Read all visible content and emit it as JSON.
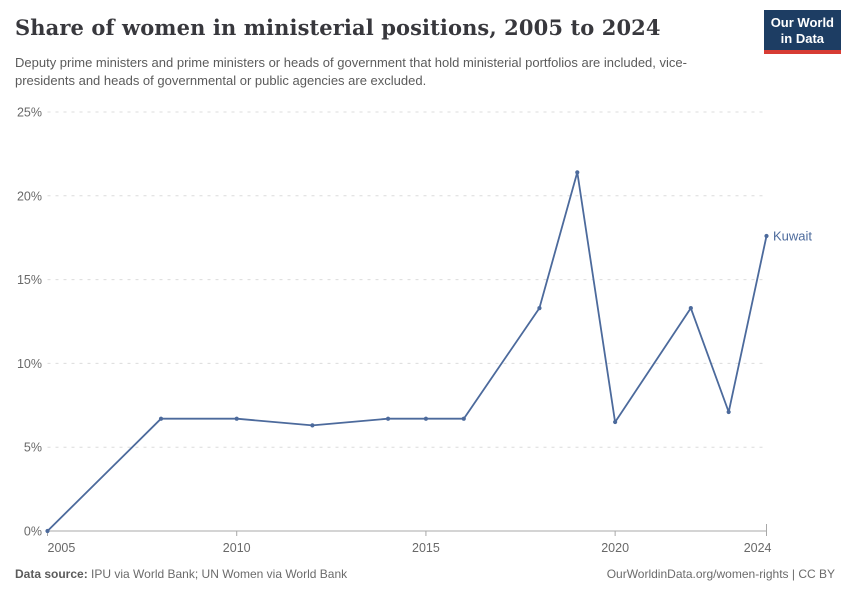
{
  "header": {
    "title": "Share of women in ministerial positions, 2005 to 2024",
    "subtitle": "Deputy prime ministers and prime ministers or heads of government that hold ministerial portfolios are included, vice-presidents and heads of governmental or public agencies are excluded."
  },
  "logo": {
    "line1": "Our World",
    "line2": "in Data",
    "bg_color": "#1d3d63",
    "accent_color": "#d73c34"
  },
  "chart_data": {
    "type": "line",
    "title": "Share of women in ministerial positions, 2005 to 2024",
    "xlabel": "",
    "ylabel": "",
    "xlim": [
      2005,
      2024
    ],
    "ylim": [
      0,
      25
    ],
    "grid": true,
    "x_ticks": [
      2005,
      2010,
      2015,
      2020,
      2024
    ],
    "x_tick_labels": [
      "2005",
      "2010",
      "2015",
      "2020",
      "2024"
    ],
    "y_ticks": [
      0,
      5,
      10,
      15,
      20,
      25
    ],
    "y_tick_labels": [
      "0%",
      "5%",
      "10%",
      "15%",
      "20%",
      "25%"
    ],
    "series": [
      {
        "name": "Kuwait",
        "color": "#4c6a9c",
        "end_label": "Kuwait",
        "points": [
          [
            2005,
            0
          ],
          [
            2008,
            6.7
          ],
          [
            2010,
            6.7
          ],
          [
            2012,
            6.3
          ],
          [
            2014,
            6.7
          ],
          [
            2015,
            6.7
          ],
          [
            2016,
            6.7
          ],
          [
            2018,
            13.3
          ],
          [
            2019,
            21.4
          ],
          [
            2020,
            6.5
          ],
          [
            2022,
            13.3
          ],
          [
            2023,
            7.1
          ],
          [
            2024,
            17.6
          ]
        ]
      }
    ],
    "style": {
      "gridline_color": "#dcdcdc",
      "axis_line_color": "#a8a8a8",
      "tick_label_color": "#696969"
    }
  },
  "footer": {
    "source_label": "Data source:",
    "source_text": " IPU via World Bank; UN Women via World Bank",
    "rights_text": "OurWorldinData.org/women-rights | CC BY"
  }
}
